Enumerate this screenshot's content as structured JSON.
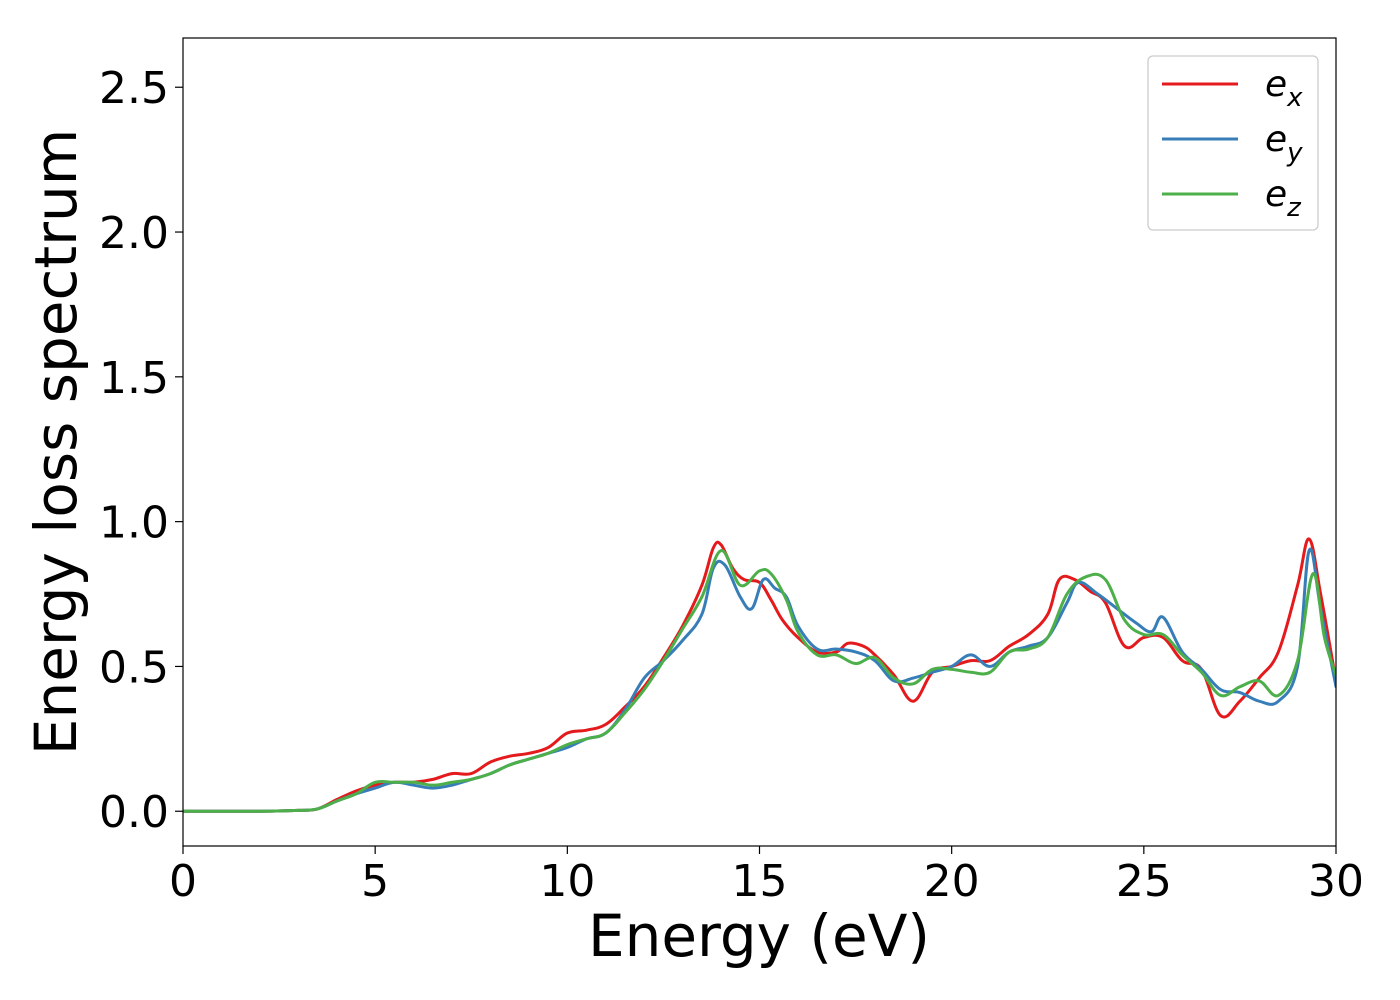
{
  "chart_data": {
    "type": "line",
    "title": "",
    "xlabel": "Energy (eV)",
    "ylabel": "Energy loss spectrum",
    "xlim": [
      0,
      30
    ],
    "ylim": [
      -0.12,
      2.67
    ],
    "x_ticks": [
      0,
      5,
      10,
      15,
      20,
      25,
      30
    ],
    "x_tick_labels": [
      "0",
      "5",
      "10",
      "15",
      "20",
      "25",
      "30"
    ],
    "y_ticks": [
      0.0,
      0.5,
      1.0,
      1.5,
      2.0,
      2.5
    ],
    "y_tick_labels": [
      "0.0",
      "0.5",
      "1.0",
      "1.5",
      "2.0",
      "2.5"
    ],
    "grid": false,
    "legend_position": "top-right",
    "series": [
      {
        "name": "e_x",
        "label_base": "e",
        "label_sub": "x",
        "color": "#e41a1c",
        "x": [
          0,
          1,
          2,
          3,
          3.5,
          4,
          4.5,
          5,
          5.5,
          6,
          6.5,
          7,
          7.5,
          8,
          8.5,
          9,
          9.5,
          10,
          10.5,
          11,
          11.5,
          12,
          12.5,
          13,
          13.5,
          13.8,
          14,
          14.3,
          14.6,
          15,
          15.3,
          15.6,
          16,
          16.5,
          17,
          17.3,
          17.7,
          18,
          18.5,
          19,
          19.5,
          20,
          20.5,
          21,
          21.5,
          22,
          22.5,
          22.8,
          23.2,
          23.6,
          24,
          24.5,
          25,
          25.5,
          26,
          26.5,
          27,
          27.5,
          28,
          28.5,
          29,
          29.3,
          29.6,
          30
        ],
        "y": [
          0.0,
          0.0,
          0.0,
          0.003,
          0.008,
          0.04,
          0.07,
          0.09,
          0.1,
          0.1,
          0.11,
          0.13,
          0.13,
          0.17,
          0.19,
          0.2,
          0.22,
          0.27,
          0.28,
          0.3,
          0.36,
          0.43,
          0.53,
          0.64,
          0.78,
          0.91,
          0.92,
          0.84,
          0.8,
          0.79,
          0.73,
          0.66,
          0.6,
          0.55,
          0.55,
          0.58,
          0.57,
          0.54,
          0.47,
          0.38,
          0.48,
          0.5,
          0.52,
          0.52,
          0.57,
          0.61,
          0.68,
          0.8,
          0.8,
          0.76,
          0.72,
          0.57,
          0.6,
          0.6,
          0.52,
          0.49,
          0.33,
          0.38,
          0.46,
          0.55,
          0.78,
          0.94,
          0.75,
          0.45
        ]
      },
      {
        "name": "e_y",
        "label_base": "e",
        "label_sub": "y",
        "color": "#377eb8",
        "x": [
          0,
          1,
          2,
          3,
          3.5,
          4,
          4.5,
          5,
          5.5,
          6,
          6.5,
          7,
          7.5,
          8,
          8.5,
          9,
          9.5,
          10,
          10.5,
          11,
          11.5,
          12,
          12.5,
          13,
          13.5,
          13.8,
          14.1,
          14.5,
          14.8,
          15.1,
          15.4,
          15.7,
          16,
          16.5,
          17,
          17.5,
          18,
          18.5,
          19,
          19.5,
          20,
          20.5,
          21,
          21.5,
          22,
          22.5,
          23,
          23.3,
          23.8,
          24.3,
          24.8,
          25.2,
          25.5,
          26,
          26.5,
          27,
          27.5,
          28,
          28.5,
          29,
          29.3,
          29.6,
          30
        ],
        "y": [
          0.0,
          0.0,
          0.0,
          0.003,
          0.008,
          0.035,
          0.06,
          0.08,
          0.1,
          0.09,
          0.08,
          0.09,
          0.11,
          0.13,
          0.16,
          0.18,
          0.2,
          0.22,
          0.25,
          0.27,
          0.35,
          0.46,
          0.52,
          0.59,
          0.68,
          0.84,
          0.85,
          0.74,
          0.7,
          0.8,
          0.77,
          0.74,
          0.64,
          0.56,
          0.56,
          0.55,
          0.52,
          0.45,
          0.46,
          0.48,
          0.5,
          0.54,
          0.5,
          0.55,
          0.57,
          0.6,
          0.72,
          0.79,
          0.75,
          0.7,
          0.65,
          0.62,
          0.67,
          0.55,
          0.49,
          0.42,
          0.41,
          0.38,
          0.38,
          0.5,
          0.9,
          0.7,
          0.43
        ]
      },
      {
        "name": "e_z",
        "label_base": "e",
        "label_sub": "z",
        "color": "#4daf4a",
        "x": [
          0,
          1,
          2,
          3,
          3.5,
          4,
          4.5,
          5,
          5.5,
          6,
          6.5,
          7,
          7.5,
          8,
          8.5,
          9,
          9.5,
          10,
          10.5,
          11,
          11.5,
          12,
          12.5,
          13,
          13.5,
          14,
          14.5,
          15,
          15.3,
          15.7,
          16,
          16.5,
          17,
          17.5,
          18,
          18.5,
          19,
          19.5,
          20,
          20.5,
          21,
          21.5,
          22,
          22.5,
          23,
          23.5,
          24,
          24.5,
          25,
          25.5,
          26,
          26.5,
          27,
          27.5,
          28,
          28.5,
          29,
          29.4,
          29.7,
          30
        ],
        "y": [
          0.0,
          0.0,
          0.0,
          0.003,
          0.008,
          0.035,
          0.06,
          0.1,
          0.1,
          0.1,
          0.09,
          0.1,
          0.11,
          0.13,
          0.16,
          0.18,
          0.2,
          0.23,
          0.25,
          0.27,
          0.34,
          0.42,
          0.52,
          0.63,
          0.74,
          0.9,
          0.78,
          0.83,
          0.82,
          0.73,
          0.62,
          0.54,
          0.54,
          0.51,
          0.53,
          0.46,
          0.44,
          0.49,
          0.49,
          0.48,
          0.48,
          0.55,
          0.56,
          0.6,
          0.75,
          0.81,
          0.8,
          0.66,
          0.61,
          0.61,
          0.54,
          0.48,
          0.4,
          0.43,
          0.45,
          0.4,
          0.52,
          0.82,
          0.6,
          0.47
        ]
      }
    ]
  }
}
